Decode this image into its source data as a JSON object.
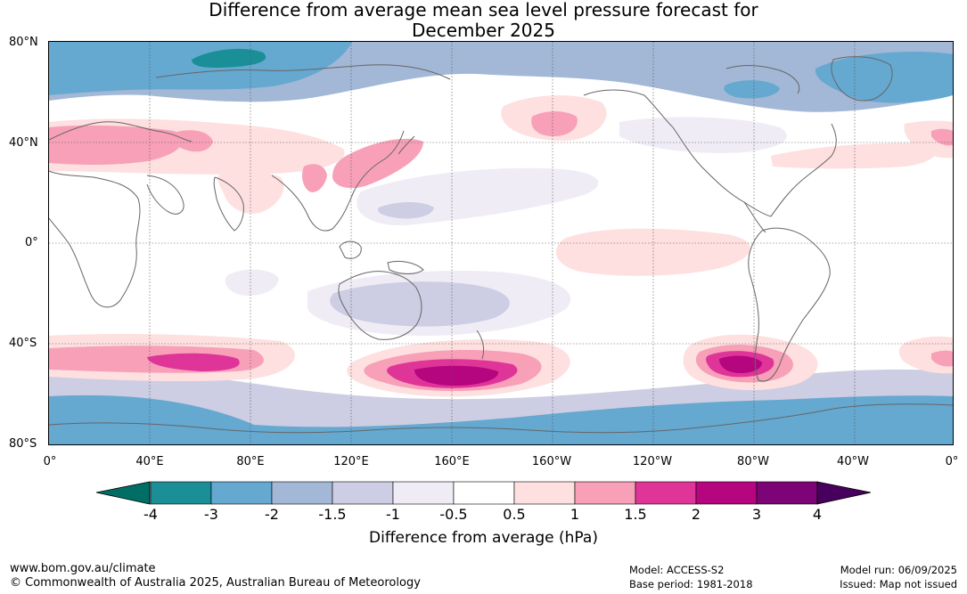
{
  "title": {
    "line1": "Difference from average mean sea level pressure forecast for",
    "line2": "December 2025"
  },
  "map": {
    "projection": "plate-carree",
    "lat_labels": [
      "80°N",
      "40°N",
      "0°",
      "40°S",
      "80°S"
    ],
    "lon_labels": [
      "0°",
      "40°E",
      "80°E",
      "120°E",
      "160°E",
      "160°W",
      "120°W",
      "80°W",
      "40°W",
      "0°"
    ],
    "gridlines": true,
    "coastline_color": "#666666"
  },
  "colorbar": {
    "title": "Difference from average (hPa)",
    "tick_labels": [
      "-4",
      "-3",
      "-2",
      "-1.5",
      "-1",
      "-0.5",
      "0.5",
      "1",
      "1.5",
      "2",
      "3",
      "4"
    ],
    "bins": [
      {
        "range": "< -4",
        "color": "#006e65"
      },
      {
        "range": "-4 to -3",
        "color": "#1a8f98"
      },
      {
        "range": "-3 to -2",
        "color": "#65a8d0"
      },
      {
        "range": "-2 to -1.5",
        "color": "#a2b8d6"
      },
      {
        "range": "-1.5 to -1",
        "color": "#cdcde3"
      },
      {
        "range": "-1 to -0.5",
        "color": "#f0ecf5"
      },
      {
        "range": "-0.5 to 0.5",
        "color": "#ffffff"
      },
      {
        "range": "0.5 to 1",
        "color": "#fde0df"
      },
      {
        "range": "1 to 1.5",
        "color": "#f7a0b8"
      },
      {
        "range": "1.5 to 2",
        "color": "#df3598"
      },
      {
        "range": "2 to 3",
        "color": "#b5057f"
      },
      {
        "range": "3 to 4",
        "color": "#7c0477"
      },
      {
        "range": "> 4",
        "color": "#47005d"
      }
    ]
  },
  "footer": {
    "website": "www.bom.gov.au/climate",
    "copyright": "© Commonwealth of Australia 2025, Australian Bureau of Meteorology",
    "model": "Model: ACCESS-S2",
    "base_period": "Base period: 1981-2018",
    "model_run": "Model run: 06/09/2025",
    "issued": "Issued: Map not issued"
  }
}
